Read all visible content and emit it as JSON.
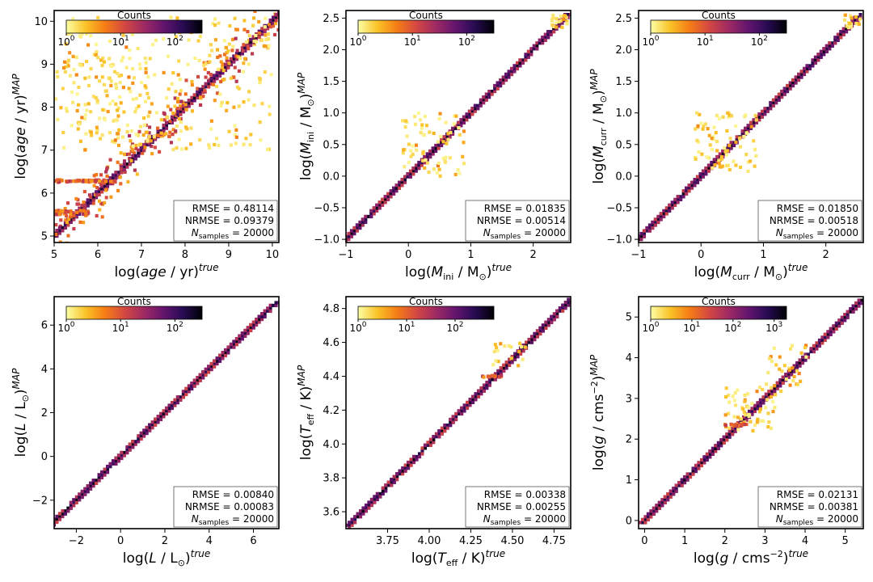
{
  "figure": {
    "background": "#ffffff"
  },
  "colormap": [
    "#fcffa4",
    "#fac228",
    "#f57d15",
    "#d44842",
    "#9f2a63",
    "#65156e",
    "#280b53",
    "#000004"
  ],
  "chart_data": [
    {
      "type": "heatmap",
      "id": "age",
      "xlim": [
        5,
        10.15
      ],
      "ylim": [
        4.85,
        10.25
      ],
      "xticks": [
        {
          "v": 5,
          "label": "5"
        },
        {
          "v": 6,
          "label": "6"
        },
        {
          "v": 7,
          "label": "7"
        },
        {
          "v": 8,
          "label": "8"
        },
        {
          "v": 9,
          "label": "9"
        },
        {
          "v": 10,
          "label": "10"
        }
      ],
      "yticks": [
        {
          "v": 5,
          "label": "5"
        },
        {
          "v": 6,
          "label": "6"
        },
        {
          "v": 7,
          "label": "7"
        },
        {
          "v": 8,
          "label": "8"
        },
        {
          "v": 9,
          "label": "9"
        },
        {
          "v": 10,
          "label": "10"
        }
      ],
      "xlabel": {
        "main": "log(",
        "sym": "age",
        "unit": " / yr)",
        "sup": "true"
      },
      "ylabel": {
        "main": "log(",
        "sym": "age",
        "unit": " / yr)",
        "sup": "MAP"
      },
      "colorbar": {
        "title": "Counts",
        "ticks": [
          {
            "label": "10",
            "exp": "0"
          },
          {
            "label": "10",
            "exp": "1"
          },
          {
            "label": "10",
            "exp": "2"
          }
        ],
        "decades": 2.5
      },
      "diagonal": [
        5.0,
        10.15
      ],
      "stats": {
        "rmse": "0.48114",
        "nrmse": "0.09379",
        "nsamples": "20000"
      },
      "features": [
        {
          "kind": "scatter",
          "x0": 5.2,
          "x1": 10.0,
          "y0": 7.0,
          "y1": 10.1,
          "count": 260
        },
        {
          "kind": "scatter",
          "x0": 5.0,
          "x1": 7.2,
          "y0": 7.2,
          "y1": 9.2,
          "count": 90
        },
        {
          "kind": "band",
          "x0": 5.0,
          "x1": 6.4,
          "y": 6.28,
          "width": 0.06,
          "count": 60
        },
        {
          "kind": "band",
          "x0": 5.0,
          "x1": 5.8,
          "y": 5.55,
          "width": 0.1,
          "count": 40
        }
      ]
    },
    {
      "type": "heatmap",
      "id": "mini",
      "xlim": [
        -1.0,
        2.6
      ],
      "ylim": [
        -1.05,
        2.62
      ],
      "xticks": [
        {
          "v": -1,
          "label": "−1"
        },
        {
          "v": 0,
          "label": "0"
        },
        {
          "v": 1,
          "label": "1"
        },
        {
          "v": 2,
          "label": "2"
        }
      ],
      "yticks": [
        {
          "v": -1.0,
          "label": "−1.0"
        },
        {
          "v": -0.5,
          "label": "−0.5"
        },
        {
          "v": 0.0,
          "label": "0.0"
        },
        {
          "v": 0.5,
          "label": "0.5"
        },
        {
          "v": 1.0,
          "label": "1.0"
        },
        {
          "v": 1.5,
          "label": "1.5"
        },
        {
          "v": 2.0,
          "label": "2.0"
        },
        {
          "v": 2.5,
          "label": "2.5"
        }
      ],
      "xlabel": {
        "main": "log(",
        "sym": "M",
        "sub": "ini",
        "unit": " / M",
        "sunsub": "⊙",
        "close": ")",
        "sup": "true"
      },
      "ylabel": {
        "main": "log(",
        "sym": "M",
        "sub": "ini",
        "unit": " / M",
        "sunsub": "⊙",
        "close": ")",
        "sup": "MAP"
      },
      "colorbar": {
        "title": "Counts",
        "ticks": [
          {
            "label": "10",
            "exp": "0"
          },
          {
            "label": "10",
            "exp": "1"
          },
          {
            "label": "10",
            "exp": "2"
          }
        ],
        "decades": 2.5
      },
      "diagonal": [
        -1.0,
        2.55
      ],
      "stats": {
        "rmse": "0.01835",
        "nrmse": "0.00514",
        "nsamples": "20000"
      },
      "features": [
        {
          "kind": "scatter",
          "x0": -0.1,
          "x1": 0.9,
          "y0": 0.0,
          "y1": 1.0,
          "count": 70
        },
        {
          "kind": "scatter",
          "x0": 2.3,
          "x1": 2.55,
          "y0": 2.35,
          "y1": 2.55,
          "count": 20
        }
      ]
    },
    {
      "type": "heatmap",
      "id": "mcurr",
      "xlim": [
        -1.0,
        2.6
      ],
      "ylim": [
        -1.05,
        2.62
      ],
      "xticks": [
        {
          "v": -1,
          "label": "−1"
        },
        {
          "v": 0,
          "label": "0"
        },
        {
          "v": 1,
          "label": "1"
        },
        {
          "v": 2,
          "label": "2"
        }
      ],
      "yticks": [
        {
          "v": -1.0,
          "label": "−1.0"
        },
        {
          "v": -0.5,
          "label": "−0.5"
        },
        {
          "v": 0.0,
          "label": "0.0"
        },
        {
          "v": 0.5,
          "label": "0.5"
        },
        {
          "v": 1.0,
          "label": "1.0"
        },
        {
          "v": 1.5,
          "label": "1.5"
        },
        {
          "v": 2.0,
          "label": "2.0"
        },
        {
          "v": 2.5,
          "label": "2.5"
        }
      ],
      "xlabel": {
        "main": "log(",
        "sym": "M",
        "sub": "curr",
        "unit": " / M",
        "sunsub": "⊙",
        "close": ")",
        "sup": "true"
      },
      "ylabel": {
        "main": "log(",
        "sym": "M",
        "sub": "curr",
        "unit": " / M",
        "sunsub": "⊙",
        "close": ")",
        "sup": "MAP"
      },
      "colorbar": {
        "title": "Counts",
        "ticks": [
          {
            "label": "10",
            "exp": "0"
          },
          {
            "label": "10",
            "exp": "1"
          },
          {
            "label": "10",
            "exp": "2"
          }
        ],
        "decades": 2.5
      },
      "diagonal": [
        -1.0,
        2.55
      ],
      "stats": {
        "rmse": "0.01850",
        "nrmse": "0.00518",
        "nsamples": "20000"
      },
      "features": [
        {
          "kind": "scatter",
          "x0": -0.1,
          "x1": 0.9,
          "y0": 0.05,
          "y1": 1.0,
          "count": 80
        },
        {
          "kind": "scatter",
          "x0": 2.3,
          "x1": 2.55,
          "y0": 2.35,
          "y1": 2.55,
          "count": 20
        }
      ]
    },
    {
      "type": "heatmap",
      "id": "lum",
      "xlim": [
        -3.0,
        7.15
      ],
      "ylim": [
        -3.3,
        7.3
      ],
      "xticks": [
        {
          "v": -2,
          "label": "−2"
        },
        {
          "v": 0,
          "label": "0"
        },
        {
          "v": 2,
          "label": "2"
        },
        {
          "v": 4,
          "label": "4"
        },
        {
          "v": 6,
          "label": "6"
        }
      ],
      "yticks": [
        {
          "v": -2,
          "label": "−2"
        },
        {
          "v": 0,
          "label": "0"
        },
        {
          "v": 2,
          "label": "2"
        },
        {
          "v": 4,
          "label": "4"
        },
        {
          "v": 6,
          "label": "6"
        }
      ],
      "xlabel": {
        "main": "log(",
        "sym": "L",
        "unit": " / L",
        "sunsub": "⊙",
        "close": ")",
        "sup": "true"
      },
      "ylabel": {
        "main": "log(",
        "sym": "L",
        "unit": " / L",
        "sunsub": "⊙",
        "close": ")",
        "sup": "MAP"
      },
      "colorbar": {
        "title": "Counts",
        "ticks": [
          {
            "label": "10",
            "exp": "0"
          },
          {
            "label": "10",
            "exp": "1"
          },
          {
            "label": "10",
            "exp": "2"
          }
        ],
        "decades": 2.5
      },
      "diagonal": [
        -3.0,
        7.05
      ],
      "stats": {
        "rmse": "0.00840",
        "nrmse": "0.00083",
        "nsamples": "20000"
      },
      "features": []
    },
    {
      "type": "heatmap",
      "id": "teff",
      "xlim": [
        3.5,
        4.85
      ],
      "ylim": [
        3.5,
        4.87
      ],
      "xticks": [
        {
          "v": 3.75,
          "label": "3.75"
        },
        {
          "v": 4.0,
          "label": "4.00"
        },
        {
          "v": 4.25,
          "label": "4.25"
        },
        {
          "v": 4.5,
          "label": "4.50"
        },
        {
          "v": 4.75,
          "label": "4.75"
        }
      ],
      "yticks": [
        {
          "v": 3.6,
          "label": "3.6"
        },
        {
          "v": 3.8,
          "label": "3.8"
        },
        {
          "v": 4.0,
          "label": "4.0"
        },
        {
          "v": 4.2,
          "label": "4.2"
        },
        {
          "v": 4.4,
          "label": "4.4"
        },
        {
          "v": 4.6,
          "label": "4.6"
        },
        {
          "v": 4.8,
          "label": "4.8"
        }
      ],
      "xlabel": {
        "main": "log(",
        "sym": "T",
        "sub": "eff",
        "unit": " / K)",
        "sup": "true"
      },
      "ylabel": {
        "main": "log(",
        "sym": "T",
        "sub": "eff",
        "unit": " / K)",
        "sup": "MAP"
      },
      "colorbar": {
        "title": "Counts",
        "ticks": [
          {
            "label": "10",
            "exp": "0"
          },
          {
            "label": "10",
            "exp": "1"
          },
          {
            "label": "10",
            "exp": "2"
          }
        ],
        "decades": 2.8
      },
      "diagonal": [
        3.52,
        4.83
      ],
      "stats": {
        "rmse": "0.00338",
        "nrmse": "0.00255",
        "nsamples": "20000"
      },
      "features": [
        {
          "kind": "band",
          "x0": 4.3,
          "x1": 4.45,
          "y": 4.4,
          "width": 0.012,
          "count": 14
        },
        {
          "kind": "scatter",
          "x0": 4.38,
          "x1": 4.58,
          "y0": 4.45,
          "y1": 4.62,
          "count": 18
        }
      ]
    },
    {
      "type": "heatmap",
      "id": "logg",
      "xlim": [
        -0.15,
        5.45
      ],
      "ylim": [
        -0.2,
        5.5
      ],
      "xticks": [
        {
          "v": 0,
          "label": "0"
        },
        {
          "v": 1,
          "label": "1"
        },
        {
          "v": 2,
          "label": "2"
        },
        {
          "v": 3,
          "label": "3"
        },
        {
          "v": 4,
          "label": "4"
        },
        {
          "v": 5,
          "label": "5"
        }
      ],
      "yticks": [
        {
          "v": 0,
          "label": "0"
        },
        {
          "v": 1,
          "label": "1"
        },
        {
          "v": 2,
          "label": "2"
        },
        {
          "v": 3,
          "label": "3"
        },
        {
          "v": 4,
          "label": "4"
        },
        {
          "v": 5,
          "label": "5"
        }
      ],
      "xlabel": {
        "main": "log(",
        "sym": "g",
        "unit": " / cms",
        "unitsup": "−2",
        "close": ")",
        "sup": "true"
      },
      "ylabel": {
        "main": "log(",
        "sym": "g",
        "unit": " / cms",
        "unitsup": "−2",
        "close": ")",
        "sup": "MAP"
      },
      "colorbar": {
        "title": "Counts",
        "ticks": [
          {
            "label": "10",
            "exp": "0"
          },
          {
            "label": "10",
            "exp": "1"
          },
          {
            "label": "10",
            "exp": "2"
          },
          {
            "label": "10",
            "exp": "3"
          }
        ],
        "decades": 3.3
      },
      "diagonal": [
        -0.05,
        5.4
      ],
      "stats": {
        "rmse": "0.02131",
        "nrmse": "0.00381",
        "nsamples": "20000"
      },
      "features": [
        {
          "kind": "scatter",
          "x0": 2.0,
          "x1": 3.4,
          "y0": 2.2,
          "y1": 3.3,
          "count": 60
        },
        {
          "kind": "band",
          "x0": 2.0,
          "x1": 2.6,
          "y": 2.35,
          "width": 0.06,
          "count": 18
        },
        {
          "kind": "scatter",
          "x0": 3.0,
          "x1": 4.2,
          "y0": 3.3,
          "y1": 4.3,
          "count": 30
        }
      ]
    }
  ],
  "labels": {
    "rmse": "RMSE = ",
    "nrmse": "NRMSE = ",
    "nsym": "N",
    "nsub": "samples",
    "neq": " = "
  }
}
